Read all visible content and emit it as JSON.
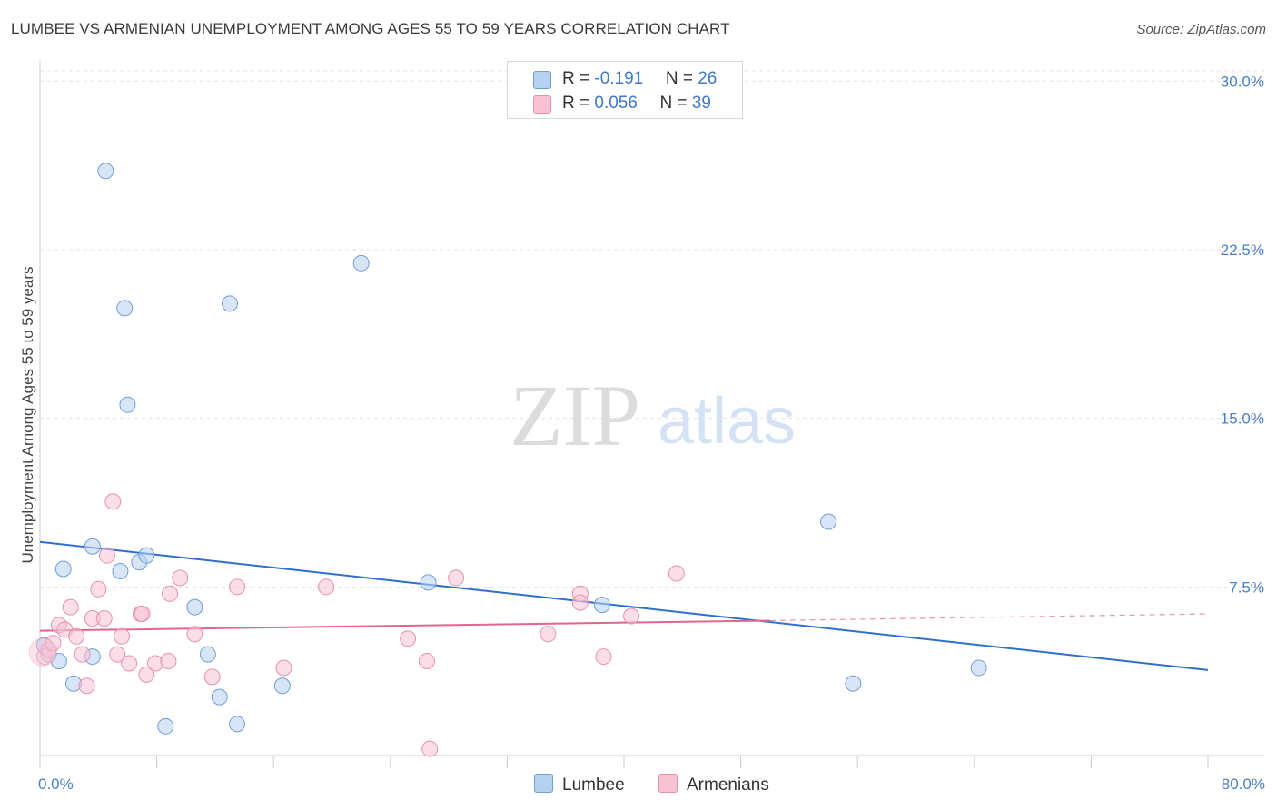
{
  "title": "LUMBEE VS ARMENIAN UNEMPLOYMENT AMONG AGES 55 TO 59 YEARS CORRELATION CHART",
  "source": "Source: ZipAtlas.com",
  "watermark": {
    "zip": "ZIP",
    "atlas": "atlas"
  },
  "legend": {
    "lumbee": {
      "r_label": "R = ",
      "r_value": "-0.191",
      "n_label": "N = ",
      "n_value": "26"
    },
    "armenians": {
      "r_label": "R = ",
      "r_value": "0.056",
      "n_label": "N = ",
      "n_value": "39"
    }
  },
  "bottom_legend": {
    "lumbee": "Lumbee",
    "armenians": "Armenians"
  },
  "colors": {
    "lumbee_fill": "#b8d0f0",
    "lumbee_stroke": "#6f9fd8",
    "lumbee_line": "#2f6fd0",
    "armenians_fill": "#f7c3d3",
    "armenians_stroke": "#e890ad",
    "armenians_line": "#e2658f",
    "tick_text": "#4a7fc8",
    "grid": "#e3e3e3"
  },
  "chart_data": {
    "type": "scatter",
    "title": "LUMBEE VS ARMENIAN UNEMPLOYMENT AMONG AGES 55 TO 59 YEARS CORRELATION CHART",
    "xlabel": "",
    "ylabel": "Unemployment Among Ages 55 to 59 years",
    "xlim": [
      0,
      80
    ],
    "ylim": [
      0,
      30.9
    ],
    "x_tick_labels": [
      "0.0%",
      "80.0%"
    ],
    "y_ticks": [
      7.5,
      15.0,
      22.5,
      30.0
    ],
    "y_tick_labels": [
      "7.5%",
      "15.0%",
      "22.5%",
      "30.0%"
    ],
    "series": [
      {
        "name": "Lumbee",
        "points": [
          [
            0.3,
            4.9
          ],
          [
            0.6,
            4.5
          ],
          [
            1.3,
            4.2
          ],
          [
            1.6,
            8.3
          ],
          [
            2.3,
            3.2
          ],
          [
            3.6,
            9.3
          ],
          [
            3.6,
            4.4
          ],
          [
            4.5,
            26.0
          ],
          [
            5.5,
            8.2
          ],
          [
            5.8,
            19.9
          ],
          [
            6.0,
            15.6
          ],
          [
            6.8,
            8.6
          ],
          [
            7.3,
            8.9
          ],
          [
            8.6,
            1.3
          ],
          [
            10.6,
            6.6
          ],
          [
            11.5,
            4.5
          ],
          [
            12.3,
            2.6
          ],
          [
            13.0,
            20.1
          ],
          [
            13.5,
            1.4
          ],
          [
            16.6,
            3.1
          ],
          [
            26.6,
            7.7
          ],
          [
            38.5,
            6.7
          ],
          [
            54.0,
            10.4
          ],
          [
            55.7,
            3.2
          ],
          [
            64.3,
            3.9
          ],
          [
            22.0,
            21.9
          ]
        ],
        "trend": {
          "x": [
            0,
            80
          ],
          "y": [
            9.5,
            3.8
          ]
        }
      },
      {
        "name": "Armenians",
        "points": [
          [
            0.3,
            4.4
          ],
          [
            0.6,
            4.7
          ],
          [
            0.9,
            5.0
          ],
          [
            1.3,
            5.8
          ],
          [
            1.7,
            5.6
          ],
          [
            2.1,
            6.6
          ],
          [
            2.5,
            5.3
          ],
          [
            2.9,
            4.5
          ],
          [
            3.2,
            3.1
          ],
          [
            3.6,
            6.1
          ],
          [
            4.0,
            7.4
          ],
          [
            4.4,
            6.1
          ],
          [
            4.6,
            8.9
          ],
          [
            5.0,
            11.3
          ],
          [
            5.3,
            4.5
          ],
          [
            5.6,
            5.3
          ],
          [
            6.1,
            4.1
          ],
          [
            6.9,
            6.3
          ],
          [
            7.0,
            6.3
          ],
          [
            7.3,
            3.6
          ],
          [
            7.9,
            4.1
          ],
          [
            8.8,
            4.2
          ],
          [
            8.9,
            7.2
          ],
          [
            9.6,
            7.9
          ],
          [
            10.6,
            5.4
          ],
          [
            11.8,
            3.5
          ],
          [
            13.5,
            7.5
          ],
          [
            16.7,
            3.9
          ],
          [
            19.6,
            7.5
          ],
          [
            25.2,
            5.2
          ],
          [
            26.5,
            4.2
          ],
          [
            26.7,
            0.3
          ],
          [
            28.5,
            7.9
          ],
          [
            34.8,
            5.4
          ],
          [
            37.0,
            7.2
          ],
          [
            37.0,
            6.8
          ],
          [
            38.6,
            4.4
          ],
          [
            40.5,
            6.2
          ],
          [
            43.6,
            8.1
          ]
        ],
        "trend": {
          "x": [
            0,
            50
          ],
          "y": [
            5.55,
            6.0
          ],
          "dashed_extension": {
            "x": [
              50,
              80
            ],
            "y": [
              6.0,
              6.3
            ]
          }
        }
      }
    ]
  }
}
